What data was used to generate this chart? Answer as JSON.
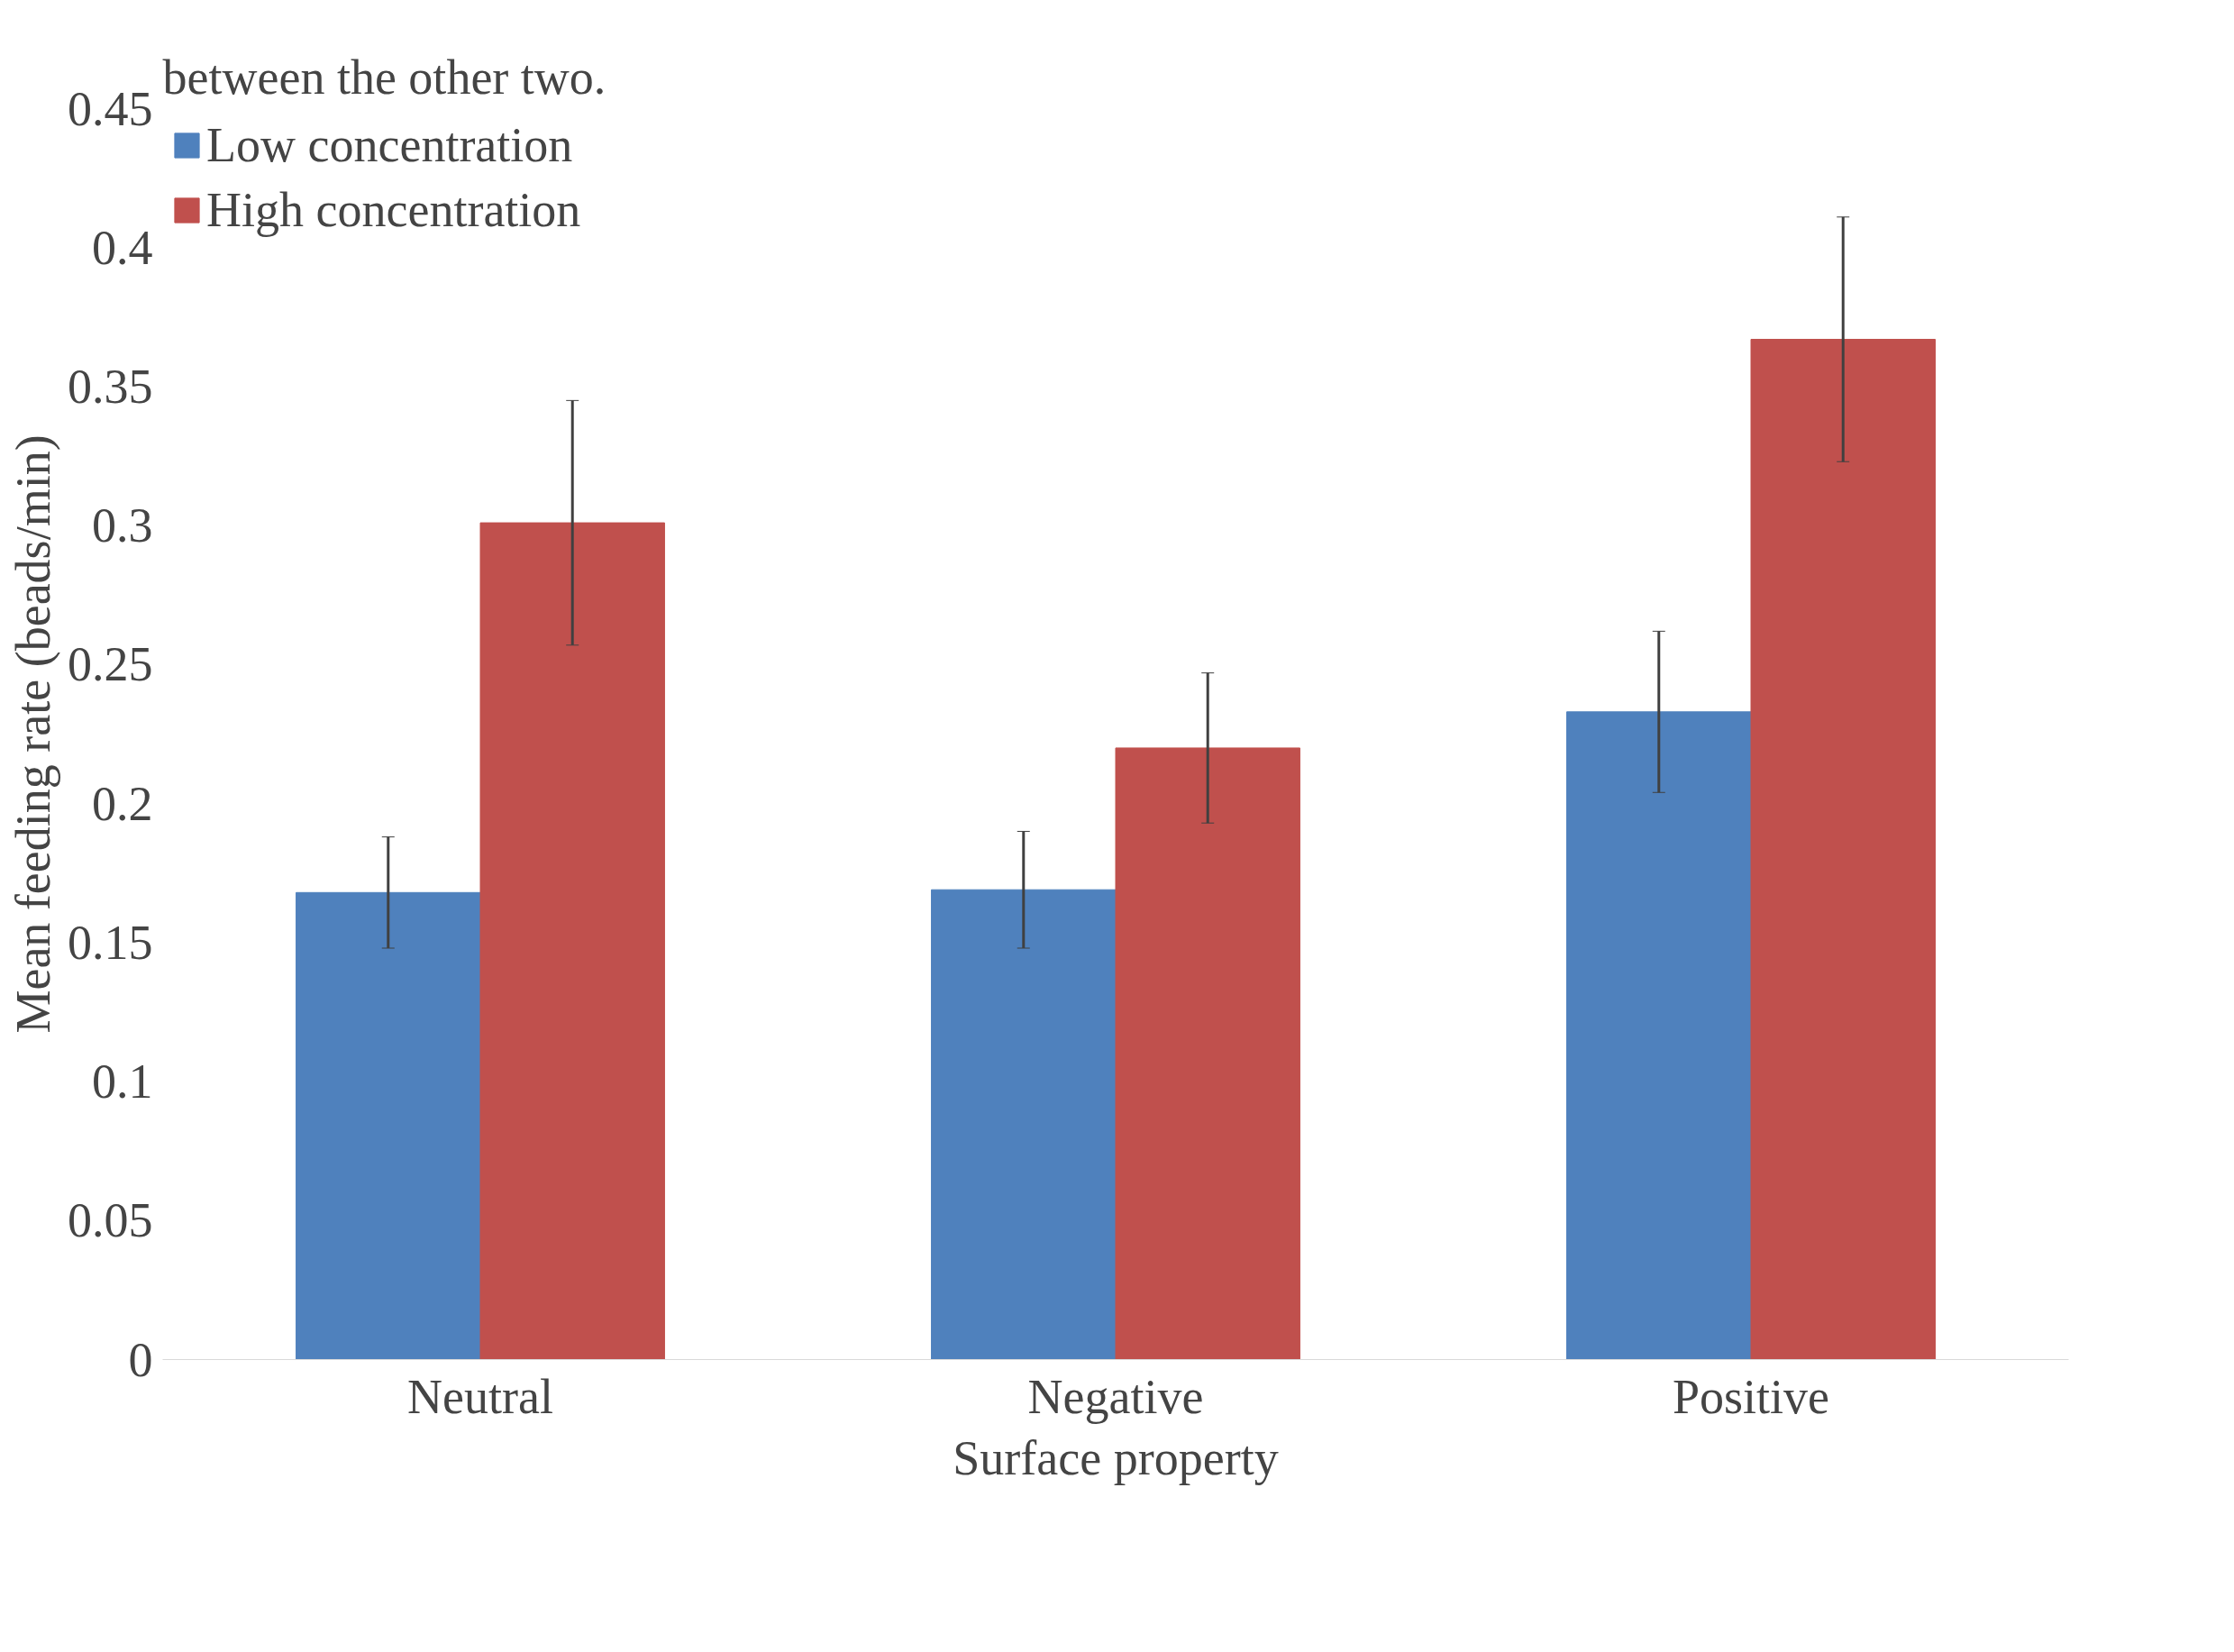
{
  "chart_data": {
    "type": "bar",
    "xlabel": "Surface property",
    "ylabel": "Mean feeding rate (beads/min)",
    "categories": [
      "Neutral",
      "Negative",
      "Positive"
    ],
    "series": [
      {
        "name": "Low concentration",
        "color": "#4f81bd",
        "values": [
          0.168,
          0.169,
          0.233
        ],
        "errors": [
          0.02,
          0.021,
          0.029
        ]
      },
      {
        "name": "High concentration",
        "color": "#c0504d",
        "values": [
          0.301,
          0.22,
          0.367
        ],
        "errors": [
          0.044,
          0.027,
          0.044
        ]
      }
    ],
    "ylim": [
      0,
      0.45
    ],
    "yticks": [
      0,
      0.05,
      0.1,
      0.15,
      0.2,
      0.25,
      0.3,
      0.35,
      0.4,
      0.45
    ],
    "grid": false,
    "legend": "top left",
    "annotations": [
      "between the other two."
    ]
  }
}
